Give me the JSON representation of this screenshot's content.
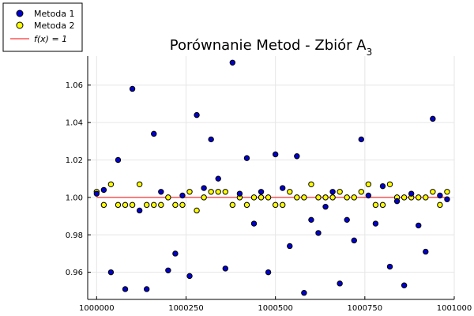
{
  "chart_data": {
    "type": "scatter",
    "title": "Porównanie Metod - Zbiór A",
    "title_subscript": "3",
    "xlabel": "",
    "ylabel": "",
    "xlim": [
      999975,
      1001000
    ],
    "ylim": [
      0.9455,
      1.0755
    ],
    "x_ticks": [
      1000000,
      1000250,
      1000500,
      1000750,
      1001000
    ],
    "x_tick_labels": [
      "1000000",
      "1000250",
      "1000500",
      "1000750",
      "1001000"
    ],
    "y_ticks": [
      0.96,
      0.98,
      1.0,
      1.02,
      1.04,
      1.06
    ],
    "y_tick_labels": [
      "0.96",
      "0.98",
      "1.00",
      "1.02",
      "1.04",
      "1.06"
    ],
    "grid": true,
    "legend_position": "top-left",
    "series": [
      {
        "name": "Metoda 1",
        "color": "#0000cc",
        "x": [
          1000000,
          1000020,
          1000040,
          1000060,
          1000080,
          1000100,
          1000120,
          1000140,
          1000160,
          1000180,
          1000200,
          1000220,
          1000240,
          1000260,
          1000280,
          1000300,
          1000320,
          1000340,
          1000360,
          1000380,
          1000400,
          1000420,
          1000440,
          1000460,
          1000480,
          1000500,
          1000520,
          1000540,
          1000560,
          1000580,
          1000600,
          1000620,
          1000640,
          1000660,
          1000680,
          1000700,
          1000720,
          1000740,
          1000760,
          1000780,
          1000800,
          1000820,
          1000840,
          1000860,
          1000880,
          1000900,
          1000920,
          1000940,
          1000960,
          1000980
        ],
        "y": [
          1.002,
          1.004,
          0.96,
          1.02,
          0.951,
          1.058,
          0.993,
          0.951,
          1.034,
          1.003,
          0.961,
          0.97,
          1.001,
          0.958,
          1.044,
          1.005,
          1.031,
          1.01,
          0.962,
          1.072,
          1.002,
          1.021,
          0.986,
          1.003,
          0.96,
          1.023,
          1.005,
          0.974,
          1.022,
          0.949,
          0.988,
          0.981,
          0.995,
          1.003,
          0.954,
          0.988,
          0.977,
          1.031,
          1.001,
          0.986,
          1.006,
          0.963,
          0.998,
          0.953,
          1.002,
          0.985,
          0.971,
          1.042,
          1.001,
          0.999
        ]
      },
      {
        "name": "Metoda 2",
        "color": "#ffff00",
        "x": [
          1000000,
          1000020,
          1000040,
          1000060,
          1000080,
          1000100,
          1000120,
          1000140,
          1000160,
          1000180,
          1000200,
          1000220,
          1000240,
          1000260,
          1000280,
          1000300,
          1000320,
          1000340,
          1000360,
          1000380,
          1000400,
          1000420,
          1000440,
          1000460,
          1000480,
          1000500,
          1000520,
          1000540,
          1000560,
          1000580,
          1000600,
          1000620,
          1000640,
          1000660,
          1000680,
          1000700,
          1000720,
          1000740,
          1000760,
          1000780,
          1000800,
          1000820,
          1000840,
          1000860,
          1000880,
          1000900,
          1000920,
          1000940,
          1000960,
          1000980
        ],
        "y": [
          1.003,
          0.996,
          1.007,
          0.996,
          0.996,
          0.996,
          1.007,
          0.996,
          0.996,
          0.996,
          1.0,
          0.996,
          0.996,
          1.003,
          0.993,
          1.0,
          1.003,
          1.003,
          1.003,
          0.996,
          1.0,
          0.996,
          1.0,
          1.0,
          1.0,
          0.996,
          0.996,
          1.003,
          1.0,
          1.0,
          1.007,
          1.0,
          1.0,
          1.0,
          1.003,
          1.0,
          1.0,
          1.003,
          1.007,
          0.996,
          0.996,
          1.007,
          1.0,
          1.0,
          1.0,
          1.0,
          1.0,
          1.003,
          0.996,
          1.003
        ]
      },
      {
        "name": "f(x) = 1",
        "type": "line",
        "color": "#ff0000",
        "x": [
          1000000,
          1000980
        ],
        "y": [
          1.0,
          1.0
        ]
      }
    ]
  }
}
